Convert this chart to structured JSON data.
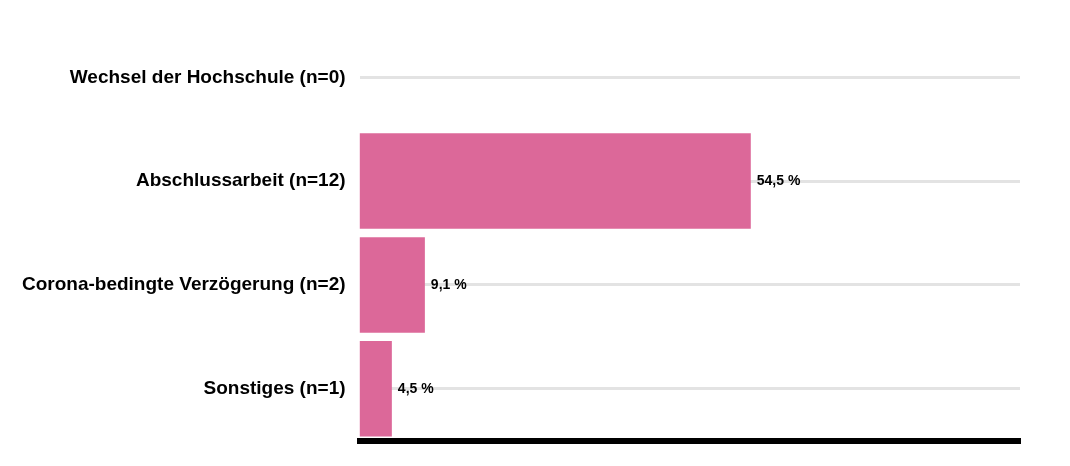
{
  "chart_data": {
    "type": "bar",
    "orientation": "horizontal",
    "categories": [
      "Wechsel der Hochschule (n=0)",
      "Abschlussarbeit (n=12)",
      "Corona-bedingte Verzögerung (n=2)",
      "Sonstiges (n=1)"
    ],
    "values": [
      0,
      54.5,
      9.1,
      4.5
    ],
    "color": "#dc6899",
    "value_labels": [
      null,
      "54,5 %",
      "9,1 %",
      "4,5 %"
    ],
    "xlim": [
      0,
      92
    ],
    "grid": "y",
    "legend": false,
    "tick_labels": "y"
  }
}
